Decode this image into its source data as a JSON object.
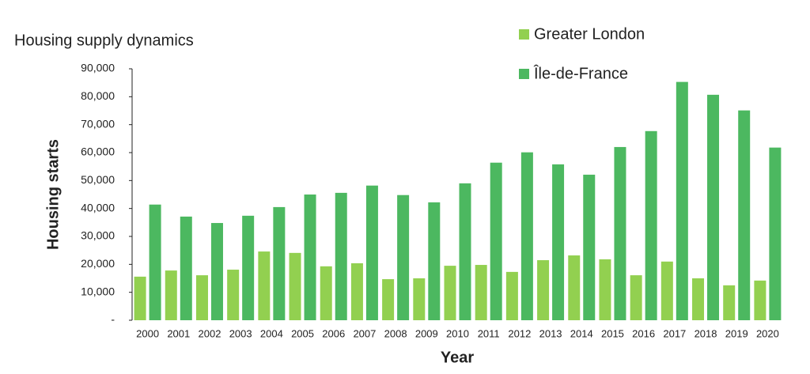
{
  "chart_data": {
    "type": "bar",
    "title": "Housing supply dynamics",
    "y_label": "Housing starts",
    "x_label": "Year",
    "categories": [
      "2000",
      "2001",
      "2002",
      "2003",
      "2004",
      "2005",
      "2006",
      "2007",
      "2008",
      "2009",
      "2010",
      "2011",
      "2012",
      "2013",
      "2014",
      "2015",
      "2016",
      "2017",
      "2018",
      "2019",
      "2020"
    ],
    "series": [
      {
        "name": "Greater London",
        "color": "#92d050",
        "values": [
          15600,
          17800,
          16100,
          18100,
          24600,
          24100,
          19300,
          20400,
          14700,
          15000,
          19500,
          19800,
          17300,
          21500,
          23200,
          21800,
          16100,
          21000,
          15000,
          12500,
          14200
        ]
      },
      {
        "name": "Île-de-France",
        "color": "#4cb860",
        "values": [
          41400,
          37100,
          34800,
          37400,
          40500,
          45000,
          45600,
          48200,
          44800,
          42200,
          49000,
          56400,
          60100,
          55800,
          52100,
          62000,
          67700,
          85300,
          80700,
          75100,
          61800
        ]
      }
    ],
    "ylim": [
      0,
      90000
    ],
    "yticks": [
      {
        "value": 0,
        "label": "-"
      },
      {
        "value": 10000,
        "label": "10,000"
      },
      {
        "value": 20000,
        "label": "20,000"
      },
      {
        "value": 30000,
        "label": "30,000"
      },
      {
        "value": 40000,
        "label": "40,000"
      },
      {
        "value": 50000,
        "label": "50,000"
      },
      {
        "value": 60000,
        "label": "60,000"
      },
      {
        "value": 70000,
        "label": "70,000"
      },
      {
        "value": 80000,
        "label": "80,000"
      },
      {
        "value": 90000,
        "label": "90,000"
      }
    ],
    "grid": false,
    "legend": "top-right"
  }
}
